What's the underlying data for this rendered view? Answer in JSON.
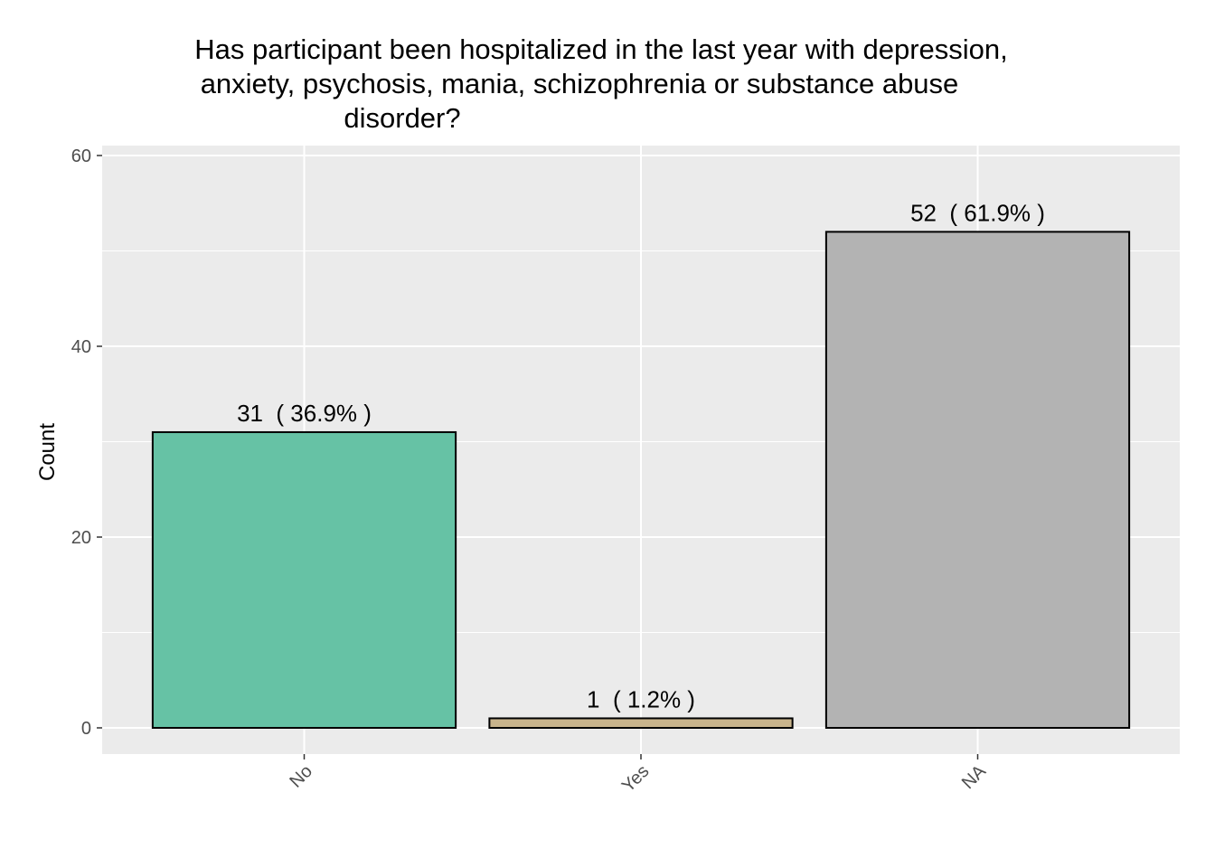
{
  "chart_data": {
    "type": "bar",
    "title_lines": [
      "Has participant been hospitalized in the last year with depression,",
      "anxiety, psychosis, mania, schizophrenia or substance abuse",
      "disorder?"
    ],
    "xlabel": "",
    "ylabel": "Count",
    "categories": [
      "No",
      "Yes",
      "NA"
    ],
    "values": [
      31,
      1,
      52
    ],
    "data_labels": [
      "31  ( 36.9% )",
      "1  ( 1.2% )",
      "52  ( 61.9% )"
    ],
    "colors": [
      "#66c2a5",
      "#c8b48c",
      "#b3b3b3"
    ],
    "ylim": [
      0,
      61.5
    ],
    "yticks": [
      0,
      20,
      40,
      60
    ],
    "ytick_labels": [
      "0",
      "20",
      "40",
      "60"
    ],
    "grid": true,
    "legend": "none",
    "x_tick_rotation_deg": 45
  }
}
